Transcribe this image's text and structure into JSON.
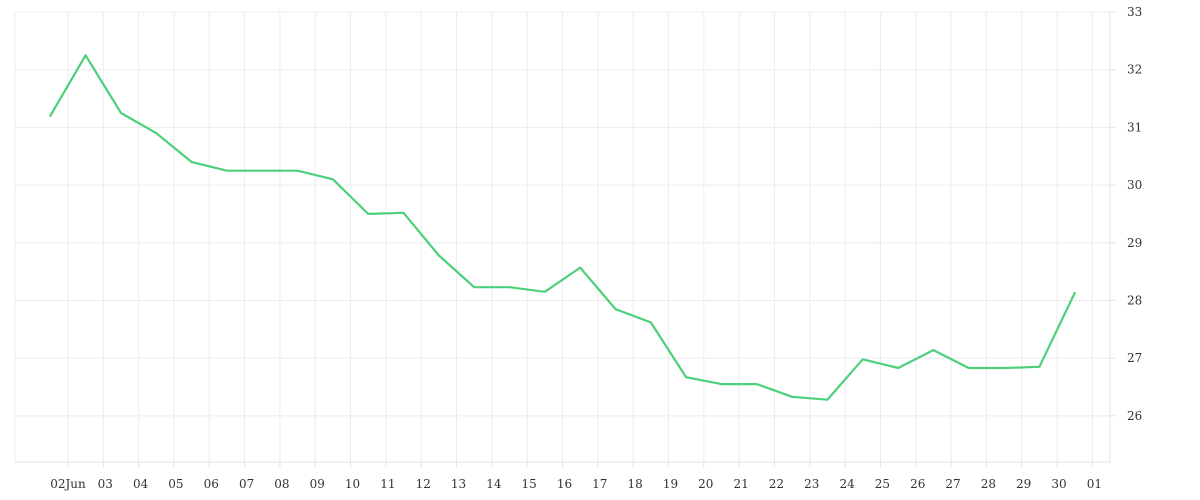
{
  "chart_data": {
    "type": "line",
    "title": "",
    "xlabel": "",
    "ylabel": "",
    "ylim": [
      25.2,
      33
    ],
    "y_ticks": [
      26,
      27,
      28,
      29,
      30,
      31,
      32,
      33
    ],
    "y_axis_side": "right",
    "grid": true,
    "x_tick_labels": [
      "02Jun",
      "03",
      "04",
      "05",
      "06",
      "07",
      "08",
      "09",
      "10",
      "11",
      "12",
      "13",
      "14",
      "15",
      "16",
      "17",
      "18",
      "19",
      "20",
      "21",
      "22",
      "23",
      "24",
      "25",
      "26",
      "27",
      "28",
      "29",
      "30",
      "01"
    ],
    "series": [
      {
        "color": "#4cd07a",
        "x": [
          "01",
          "02",
          "03",
          "04",
          "05",
          "06",
          "07",
          "08",
          "09",
          "10",
          "11",
          "12",
          "13",
          "14",
          "15",
          "16",
          "17",
          "18",
          "19",
          "20",
          "21",
          "22",
          "23",
          "24",
          "25",
          "26",
          "27",
          "28",
          "29",
          "30"
        ],
        "values": [
          31.2,
          32.25,
          31.25,
          30.9,
          30.4,
          30.25,
          30.25,
          30.25,
          30.1,
          29.5,
          29.52,
          28.78,
          28.23,
          28.23,
          28.15,
          28.57,
          27.85,
          27.62,
          26.67,
          26.55,
          26.55,
          26.33,
          26.28,
          26.98,
          26.83,
          27.14,
          26.83,
          26.83,
          26.85,
          28.13
        ]
      }
    ]
  }
}
